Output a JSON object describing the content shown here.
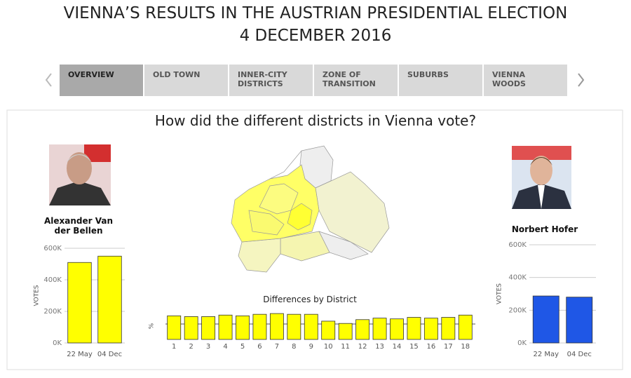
{
  "header": {
    "title": "VIENNA’S RESULTS IN THE AUSTRIAN PRESIDENTIAL ELECTION",
    "subtitle": "4 DECEMBER 2016"
  },
  "tabs": [
    "OVERVIEW",
    "OLD TOWN",
    "INNER-CITY DISTRICTS",
    "ZONE OF TRANSITION",
    "SUBURBS",
    "VIENNA WOODS"
  ],
  "dashboard_title": "How did the different districts in Vienna vote?",
  "chart_data": [
    {
      "type": "bar",
      "title": "Alexander Van der Bellen",
      "ylabel": "VOTES",
      "categories": [
        "22 May",
        "04 Dec"
      ],
      "values": [
        510000,
        550000
      ],
      "color": "#ffff00",
      "ylim": [
        0,
        600000
      ],
      "yticks": [
        {
          "value": 0,
          "label": "0K"
        },
        {
          "value": 200000,
          "label": "200K"
        },
        {
          "value": 400000,
          "label": "400K"
        },
        {
          "value": 600000,
          "label": "600K"
        }
      ],
      "grid": true
    },
    {
      "type": "bar",
      "title": "Norbert Hofer",
      "ylabel": "VOTES",
      "categories": [
        "22 May",
        "04 Dec"
      ],
      "values": [
        287000,
        280000
      ],
      "color": "#1f57e6",
      "ylim": [
        0,
        600000
      ],
      "yticks": [
        {
          "value": 0,
          "label": "0K"
        },
        {
          "value": 200000,
          "label": "200K"
        },
        {
          "value": 400000,
          "label": "400K"
        },
        {
          "value": 600000,
          "label": "600K"
        }
      ],
      "grid": true
    },
    {
      "type": "bar",
      "title": "Differences by District",
      "ylabel": "%",
      "categories": [
        "1",
        "2",
        "3",
        "4",
        "5",
        "6",
        "7",
        "8",
        "9",
        "10",
        "11",
        "12",
        "13",
        "14",
        "15",
        "16",
        "17",
        "18"
      ],
      "values": [
        31,
        30,
        30,
        32,
        31,
        33,
        34,
        33,
        33,
        24,
        21,
        26,
        28,
        27,
        29,
        28,
        29,
        32
      ],
      "color": "#ffff00",
      "ylim": [
        0,
        35
      ]
    }
  ]
}
